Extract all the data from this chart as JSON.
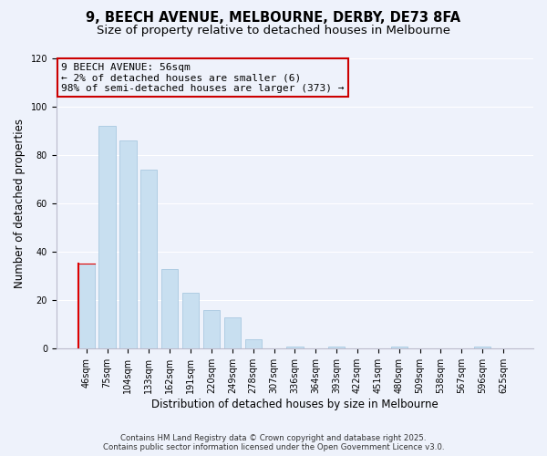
{
  "title": "9, BEECH AVENUE, MELBOURNE, DERBY, DE73 8FA",
  "subtitle": "Size of property relative to detached houses in Melbourne",
  "xlabel": "Distribution of detached houses by size in Melbourne",
  "ylabel": "Number of detached properties",
  "categories": [
    "46sqm",
    "75sqm",
    "104sqm",
    "133sqm",
    "162sqm",
    "191sqm",
    "220sqm",
    "249sqm",
    "278sqm",
    "307sqm",
    "336sqm",
    "364sqm",
    "393sqm",
    "422sqm",
    "451sqm",
    "480sqm",
    "509sqm",
    "538sqm",
    "567sqm",
    "596sqm",
    "625sqm"
  ],
  "values": [
    35,
    92,
    86,
    74,
    33,
    23,
    16,
    13,
    4,
    0,
    1,
    0,
    1,
    0,
    0,
    1,
    0,
    0,
    0,
    1,
    0
  ],
  "bar_color": "#c8dff0",
  "bar_edge_color": "#a8c8e0",
  "highlight_edge_color": "#dd0000",
  "ylim": [
    0,
    120
  ],
  "yticks": [
    0,
    20,
    40,
    60,
    80,
    100,
    120
  ],
  "annotation_title": "9 BEECH AVENUE: 56sqm",
  "annotation_line1": "← 2% of detached houses are smaller (6)",
  "annotation_line2": "98% of semi-detached houses are larger (373) →",
  "annotation_box_edge_color": "#cc0000",
  "footnote1": "Contains HM Land Registry data © Crown copyright and database right 2025.",
  "footnote2": "Contains public sector information licensed under the Open Government Licence v3.0.",
  "background_color": "#eef2fb",
  "grid_color": "#ffffff",
  "title_fontsize": 10.5,
  "subtitle_fontsize": 9.5,
  "axis_label_fontsize": 8.5,
  "tick_fontsize": 7,
  "annotation_fontsize": 8,
  "footnote_fontsize": 6.2
}
